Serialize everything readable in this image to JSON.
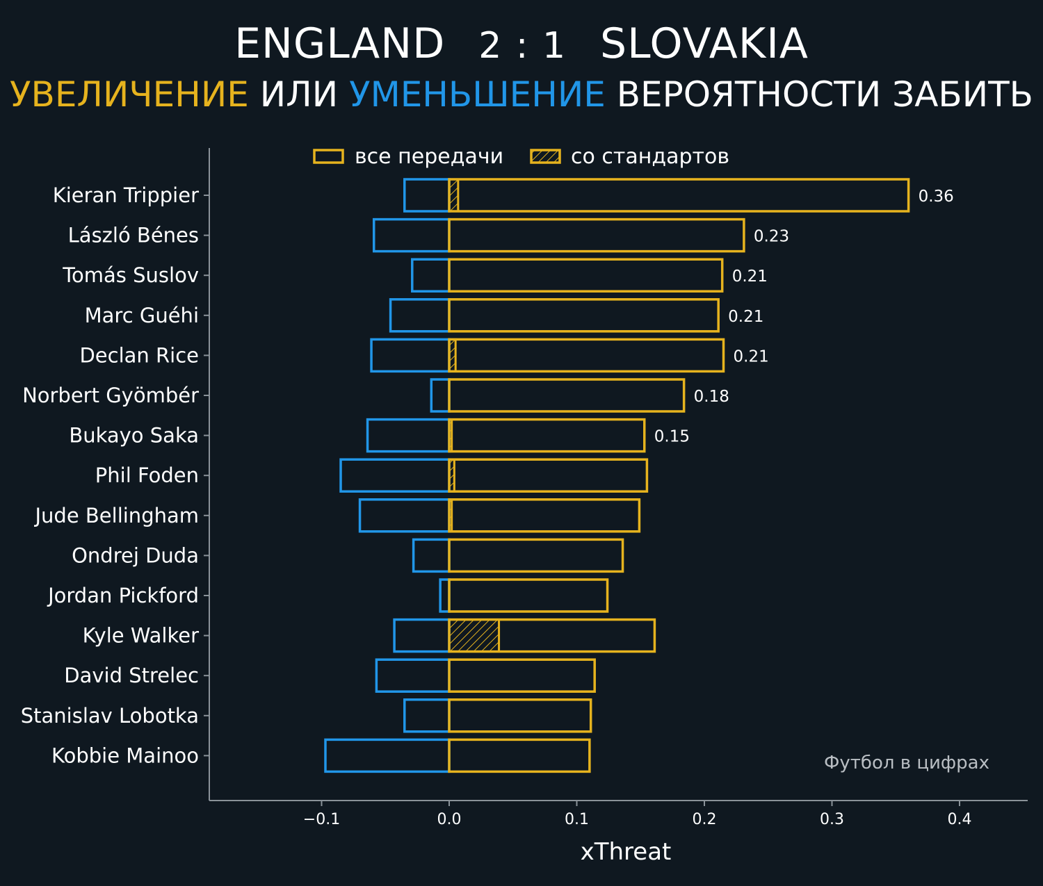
{
  "header": {
    "team_home": "ENGLAND",
    "score": "2 : 1",
    "team_away": "SLOVAKIA",
    "subtitle_increase": "УВЕЛИЧЕНИЕ",
    "subtitle_or": "ИЛИ",
    "subtitle_decrease": "УМЕНЬШЕНИЕ",
    "subtitle_rest": "ВЕРОЯТНОСТИ ЗАБИТЬ"
  },
  "watermark": "Футбол в цифрах",
  "colors": {
    "background": "#0f1820",
    "positive": "#e6b31e",
    "negative": "#2196e8",
    "axis": "#8a9299",
    "text": "#ffffff"
  },
  "chart_data": {
    "type": "bar",
    "orientation": "horizontal",
    "xlabel": "xThreat",
    "xlim": [
      -0.19,
      0.45
    ],
    "xticks": [
      -0.1,
      0.0,
      0.1,
      0.2,
      0.3,
      0.4
    ],
    "xtick_labels": [
      "−0.1",
      "0.0",
      "0.1",
      "0.2",
      "0.3",
      "0.4"
    ],
    "legend": {
      "position": "top",
      "entries": [
        "все передачи",
        "со стандартов"
      ]
    },
    "categories": [
      "Kieran Trippier",
      "László Bénes",
      "Tomás Suslov",
      "Marc Guéhi",
      "Declan Rice",
      "Norbert Gyömbér",
      "Bukayo Saka",
      "Phil Foden",
      "Jude Bellingham",
      "Ondrej Duda",
      "Jordan Pickford",
      "Kyle Walker",
      "David Strelec",
      "Stanislav Lobotka",
      "Kobbie Mainoo"
    ],
    "series": [
      {
        "name": "все передачи",
        "positive": [
          0.36,
          0.231,
          0.214,
          0.211,
          0.215,
          0.184,
          0.153,
          0.155,
          0.149,
          0.136,
          0.124,
          0.161,
          0.114,
          0.111,
          0.11
        ],
        "negative": [
          -0.035,
          -0.059,
          -0.029,
          -0.046,
          -0.061,
          -0.014,
          -0.064,
          -0.085,
          -0.07,
          -0.028,
          -0.007,
          -0.043,
          -0.057,
          -0.035,
          -0.097
        ]
      },
      {
        "name": "со стандартов",
        "positive": [
          0.007,
          0.0,
          0.0,
          0.0,
          0.005,
          0.0,
          0.002,
          0.004,
          0.002,
          0.0,
          0.0,
          0.039,
          0.0,
          0.0,
          0.0
        ]
      }
    ],
    "value_labels": [
      "0.36",
      "0.23",
      "0.21",
      "0.21",
      "0.21",
      "0.18",
      "0.15",
      "",
      "",
      "",
      "",
      "",
      "",
      "",
      ""
    ]
  }
}
